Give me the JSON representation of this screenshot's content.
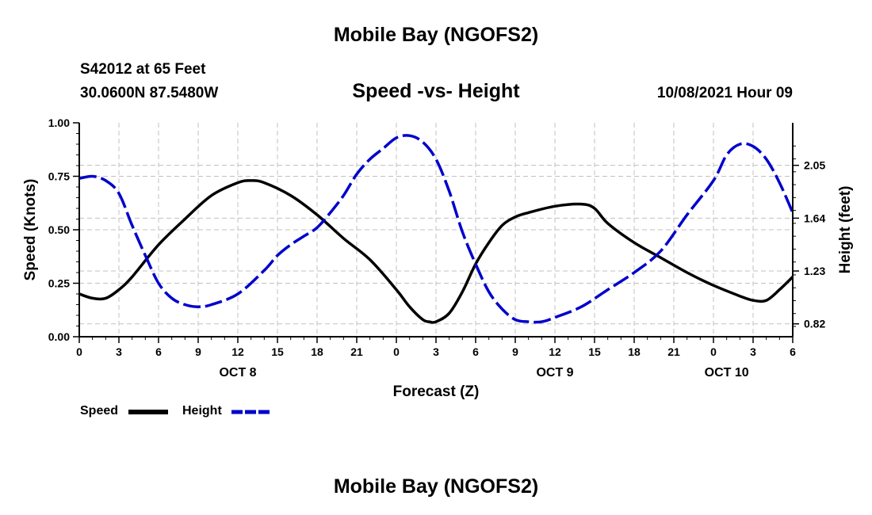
{
  "header": {
    "top_title": "Mobile Bay (NGOFS2)",
    "station": "S42012 at 65 Feet",
    "coords": "30.0600N  87.5480W",
    "subtitle": "Speed -vs- Height",
    "datetime": "10/08/2021 Hour 09",
    "bottom_title": "Mobile Bay (NGOFS2)"
  },
  "colors": {
    "speed": "#000000",
    "height": "#0000cc",
    "grid": "#c0c0c0"
  },
  "chart_data": {
    "type": "line",
    "xlabel": "Forecast (Z)",
    "ylabel_left": "Speed (Knots)",
    "ylabel_right": "Height (feet)",
    "x_range": [
      0,
      54
    ],
    "x_tick_labels": [
      "0",
      "3",
      "6",
      "9",
      "12",
      "15",
      "18",
      "21",
      "0",
      "3",
      "6",
      "9",
      "12",
      "15",
      "18",
      "21",
      "0",
      "3",
      "6"
    ],
    "date_labels": [
      {
        "label": "OCT 8",
        "at_hour": 12
      },
      {
        "label": "OCT 9",
        "at_hour": 36
      },
      {
        "label": "OCT 10",
        "at_hour": 49
      }
    ],
    "y_left_range": [
      0,
      1
    ],
    "y_left_ticks": [
      "0.00",
      "0.25",
      "0.50",
      "0.75",
      "1.00"
    ],
    "y_right_range": [
      0.72,
      2.38
    ],
    "y_right_ticks": [
      "0.82",
      "1.23",
      "1.64",
      "2.05"
    ],
    "grid": true,
    "legend_position": "bottom-left",
    "series": [
      {
        "name": "Speed",
        "axis": "left",
        "style": "solid",
        "x": [
          0,
          1,
          2,
          3,
          4,
          6,
          8,
          10,
          12,
          13,
          14,
          16,
          18,
          20,
          22,
          24,
          25,
          26,
          26.5,
          27,
          28,
          29,
          30,
          31,
          32,
          33,
          34,
          36,
          38,
          39,
          40,
          42,
          44,
          46,
          48,
          50,
          51,
          52,
          53,
          54
        ],
        "y": [
          0.2,
          0.18,
          0.18,
          0.22,
          0.28,
          0.43,
          0.55,
          0.66,
          0.72,
          0.73,
          0.72,
          0.66,
          0.57,
          0.46,
          0.36,
          0.22,
          0.14,
          0.08,
          0.07,
          0.07,
          0.11,
          0.21,
          0.34,
          0.44,
          0.52,
          0.56,
          0.58,
          0.61,
          0.62,
          0.6,
          0.53,
          0.44,
          0.37,
          0.3,
          0.24,
          0.19,
          0.17,
          0.17,
          0.22,
          0.28
        ]
      },
      {
        "name": "Height",
        "axis": "left",
        "style": "dashed",
        "x": [
          0,
          1,
          2,
          3,
          4,
          5,
          6,
          7,
          8,
          9,
          10,
          12,
          14,
          15,
          16,
          17,
          18,
          19,
          20,
          21,
          22,
          23,
          24,
          25,
          26,
          27,
          28,
          29,
          30,
          31,
          32,
          33,
          34,
          35,
          36,
          38,
          40,
          42,
          44,
          46,
          48,
          49,
          50,
          51,
          52,
          53,
          54
        ],
        "y": [
          0.74,
          0.75,
          0.73,
          0.67,
          0.52,
          0.38,
          0.25,
          0.18,
          0.15,
          0.14,
          0.15,
          0.2,
          0.31,
          0.38,
          0.43,
          0.47,
          0.51,
          0.58,
          0.66,
          0.76,
          0.83,
          0.88,
          0.93,
          0.94,
          0.91,
          0.83,
          0.68,
          0.49,
          0.34,
          0.21,
          0.13,
          0.08,
          0.07,
          0.07,
          0.09,
          0.14,
          0.22,
          0.3,
          0.4,
          0.57,
          0.73,
          0.85,
          0.9,
          0.89,
          0.83,
          0.72,
          0.58
        ]
      }
    ]
  }
}
